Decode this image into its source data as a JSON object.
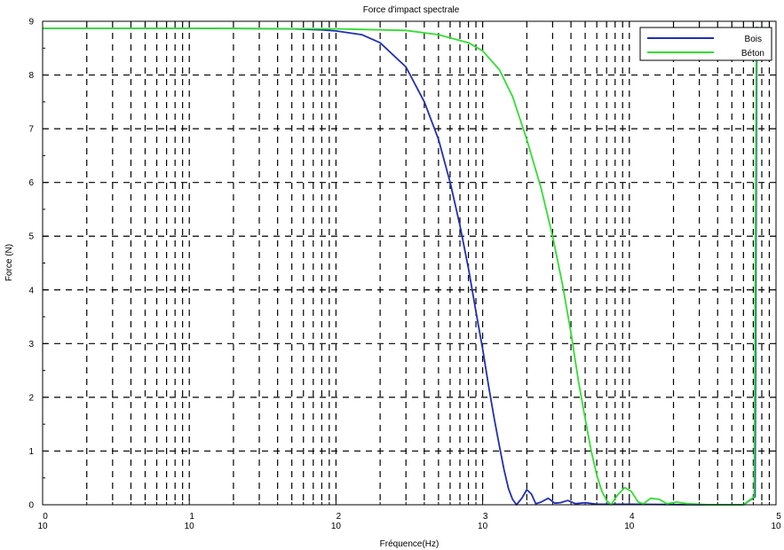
{
  "chart_data": {
    "type": "line",
    "title": "Force d'impact spectrale",
    "xlabel": "Fréquence(Hz)",
    "ylabel": "Force (N)",
    "xscale": "log",
    "xlim": [
      1,
      100000
    ],
    "ylim": [
      0,
      9
    ],
    "grid": true,
    "legend_position": "top-right",
    "x_ticks": [
      {
        "base": "10",
        "exp": "0"
      },
      {
        "base": "10",
        "exp": "1"
      },
      {
        "base": "10",
        "exp": "2"
      },
      {
        "base": "10",
        "exp": "3"
      },
      {
        "base": "10",
        "exp": "4"
      },
      {
        "base": "10",
        "exp": "5"
      }
    ],
    "y_ticks": [
      "0",
      "1",
      "2",
      "3",
      "4",
      "5",
      "6",
      "7",
      "8",
      "9"
    ],
    "series": [
      {
        "name": "Bois",
        "color": "#1f2fb0",
        "points": [
          [
            1,
            8.87
          ],
          [
            10,
            8.87
          ],
          [
            50,
            8.86
          ],
          [
            80,
            8.84
          ],
          [
            100,
            8.82
          ],
          [
            150,
            8.75
          ],
          [
            200,
            8.6
          ],
          [
            300,
            8.15
          ],
          [
            400,
            7.5
          ],
          [
            500,
            6.8
          ],
          [
            600,
            6.0
          ],
          [
            700,
            5.2
          ],
          [
            800,
            4.4
          ],
          [
            900,
            3.6
          ],
          [
            1000,
            2.9
          ],
          [
            1100,
            2.2
          ],
          [
            1200,
            1.6
          ],
          [
            1300,
            1.1
          ],
          [
            1400,
            0.65
          ],
          [
            1500,
            0.3
          ],
          [
            1600,
            0.1
          ],
          [
            1700,
            0.0
          ],
          [
            1850,
            0.12
          ],
          [
            2000,
            0.28
          ],
          [
            2150,
            0.2
          ],
          [
            2300,
            0.02
          ],
          [
            2500,
            0.05
          ],
          [
            2800,
            0.12
          ],
          [
            3100,
            0.03
          ],
          [
            3400,
            0.04
          ],
          [
            3800,
            0.08
          ],
          [
            4300,
            0.02
          ],
          [
            5000,
            0.04
          ],
          [
            6000,
            0.01
          ],
          [
            10000,
            0.01
          ],
          [
            30000,
            0.0
          ],
          [
            60000,
            0.0
          ],
          [
            72000,
            0.15
          ],
          [
            74000,
            8.9
          ]
        ]
      },
      {
        "name": "Béton",
        "color": "#33dd33",
        "points": [
          [
            1,
            8.87
          ],
          [
            10,
            8.87
          ],
          [
            100,
            8.86
          ],
          [
            300,
            8.83
          ],
          [
            500,
            8.75
          ],
          [
            800,
            8.6
          ],
          [
            1000,
            8.45
          ],
          [
            1300,
            8.1
          ],
          [
            1600,
            7.6
          ],
          [
            2000,
            6.8
          ],
          [
            2500,
            5.9
          ],
          [
            3000,
            5.0
          ],
          [
            3500,
            4.1
          ],
          [
            4000,
            3.2
          ],
          [
            4500,
            2.3
          ],
          [
            5000,
            1.6
          ],
          [
            5500,
            1.0
          ],
          [
            6000,
            0.55
          ],
          [
            6500,
            0.25
          ],
          [
            7000,
            0.08
          ],
          [
            7500,
            0.0
          ],
          [
            8300,
            0.18
          ],
          [
            9300,
            0.32
          ],
          [
            10300,
            0.25
          ],
          [
            11500,
            0.05
          ],
          [
            12500,
            0.02
          ],
          [
            14000,
            0.12
          ],
          [
            16000,
            0.1
          ],
          [
            18000,
            0.02
          ],
          [
            21000,
            0.05
          ],
          [
            25000,
            0.02
          ],
          [
            35000,
            0.0
          ],
          [
            60000,
            0.0
          ],
          [
            71000,
            0.15
          ],
          [
            73500,
            8.9
          ]
        ]
      }
    ]
  }
}
